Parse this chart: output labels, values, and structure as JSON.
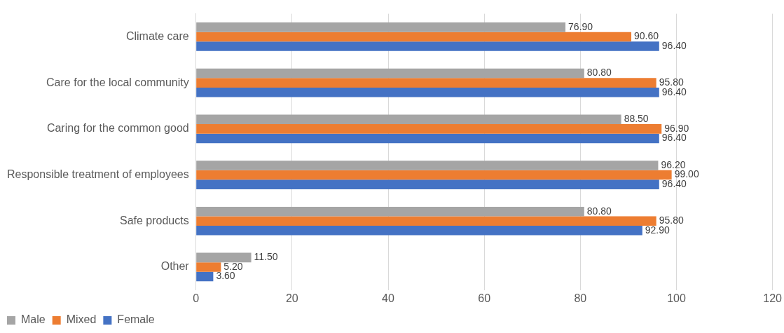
{
  "chart_data": {
    "type": "bar",
    "orientation": "horizontal",
    "categories": [
      "Climate care",
      "Care for the local community",
      "Caring for the common good",
      "Responsible treatment of employees",
      "Safe products",
      "Other"
    ],
    "series": [
      {
        "name": "Male",
        "color": "#a5a5a5",
        "values": [
          76.9,
          80.8,
          88.5,
          96.2,
          80.8,
          11.5
        ],
        "value_labels": [
          "76.90",
          "80.80",
          "88.50",
          "96.20",
          "80.80",
          "11.50"
        ]
      },
      {
        "name": "Mixed",
        "color": "#ed7d31",
        "values": [
          90.6,
          95.8,
          96.9,
          99.0,
          95.8,
          5.2
        ],
        "value_labels": [
          "90.60",
          "95.80",
          "96.90",
          "99.00",
          "95.80",
          "5.20"
        ]
      },
      {
        "name": "Female",
        "color": "#4472c4",
        "values": [
          96.4,
          96.4,
          96.4,
          96.4,
          92.9,
          3.6
        ],
        "value_labels": [
          "96.40",
          "96.40",
          "96.40",
          "96.40",
          "92.90",
          "3.60"
        ]
      }
    ],
    "xlim": [
      0,
      120
    ],
    "xticks": [
      0,
      20,
      40,
      60,
      80,
      100,
      120
    ],
    "grid": "x",
    "legend": "bottom left"
  }
}
